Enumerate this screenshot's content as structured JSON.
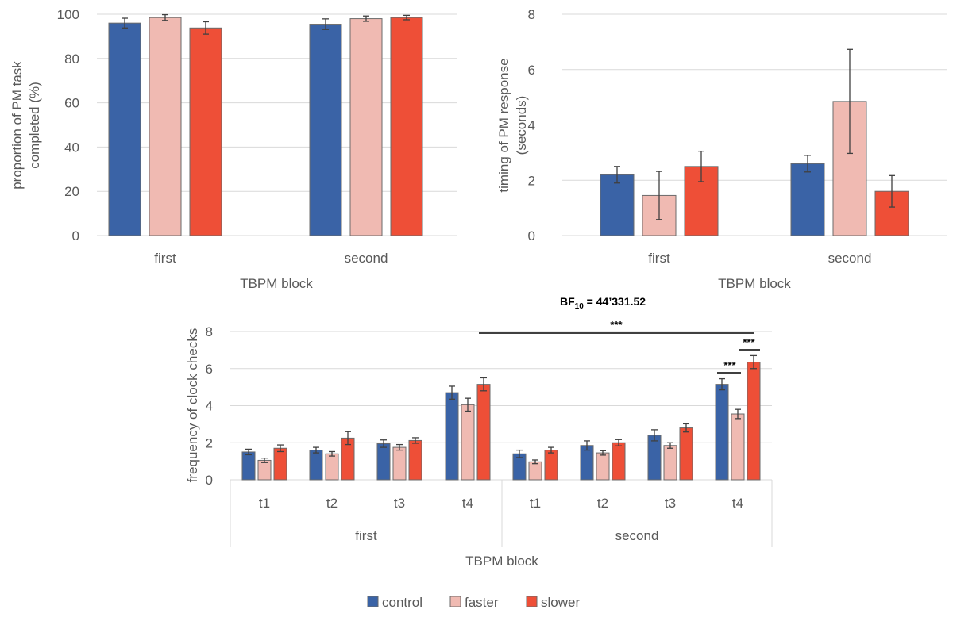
{
  "colors": {
    "control": "#3a63a6",
    "faster": "#f0bab2",
    "slower": "#ee4f37",
    "grid": "#d9d9d9",
    "text": "#595959"
  },
  "legend": [
    {
      "key": "control",
      "label": "control"
    },
    {
      "key": "faster",
      "label": "faster"
    },
    {
      "key": "slower",
      "label": "slower"
    }
  ],
  "annotation": {
    "bf_prefix": "BF",
    "bf_sub": "10",
    "bf_value": " = 44’331.52",
    "sig": "***"
  },
  "chart_data": [
    {
      "id": "chart1",
      "type": "bar",
      "title": "",
      "ylabel_lines": [
        "proportion of PM task",
        "completed (%)"
      ],
      "xlabel": "TBPM block",
      "categories": [
        "first",
        "second"
      ],
      "ylim": [
        0,
        100
      ],
      "yticks": [
        0,
        20,
        40,
        60,
        80,
        100
      ],
      "series": [
        {
          "name": "control",
          "values": [
            96,
            95.5
          ],
          "errors": [
            2.2,
            2.4
          ]
        },
        {
          "name": "faster",
          "values": [
            98.5,
            98
          ],
          "errors": [
            1.3,
            1.2
          ]
        },
        {
          "name": "slower",
          "values": [
            93.8,
            98.5
          ],
          "errors": [
            2.8,
            1
          ]
        }
      ]
    },
    {
      "id": "chart2",
      "type": "bar",
      "title": "",
      "ylabel_lines": [
        "timing of PM response",
        "(seconds)"
      ],
      "xlabel": "TBPM block",
      "categories": [
        "first",
        "second"
      ],
      "ylim": [
        0,
        8
      ],
      "yticks": [
        0,
        2,
        4,
        6,
        8
      ],
      "series": [
        {
          "name": "control",
          "values": [
            2.2,
            2.6
          ],
          "errors": [
            0.3,
            0.3
          ]
        },
        {
          "name": "faster",
          "values": [
            1.45,
            4.85
          ],
          "errors": [
            0.87,
            1.88
          ]
        },
        {
          "name": "slower",
          "values": [
            2.5,
            1.6
          ],
          "errors": [
            0.55,
            0.57
          ]
        }
      ]
    },
    {
      "id": "chart3",
      "type": "bar",
      "title": "",
      "ylabel": "frequency of clock checks",
      "xlabel": "TBPM block",
      "groups": [
        "first",
        "second"
      ],
      "categories": [
        "t1",
        "t2",
        "t3",
        "t4",
        "t1",
        "t2",
        "t3",
        "t4"
      ],
      "ylim": [
        0,
        8
      ],
      "yticks": [
        0,
        2,
        4,
        6,
        8
      ],
      "series": [
        {
          "name": "control",
          "values": [
            1.5,
            1.6,
            1.95,
            4.7,
            1.4,
            1.85,
            2.4,
            5.15
          ],
          "errors": [
            0.15,
            0.15,
            0.2,
            0.35,
            0.2,
            0.25,
            0.3,
            0.3
          ]
        },
        {
          "name": "faster",
          "values": [
            1.05,
            1.4,
            1.75,
            4.05,
            0.97,
            1.45,
            1.85,
            3.55
          ],
          "errors": [
            0.12,
            0.12,
            0.15,
            0.35,
            0.1,
            0.12,
            0.15,
            0.25
          ]
        },
        {
          "name": "slower",
          "values": [
            1.7,
            2.25,
            2.12,
            5.15,
            1.6,
            2.0,
            2.8,
            6.35
          ],
          "errors": [
            0.18,
            0.35,
            0.15,
            0.35,
            0.15,
            0.17,
            0.22,
            0.35
          ]
        }
      ]
    }
  ]
}
